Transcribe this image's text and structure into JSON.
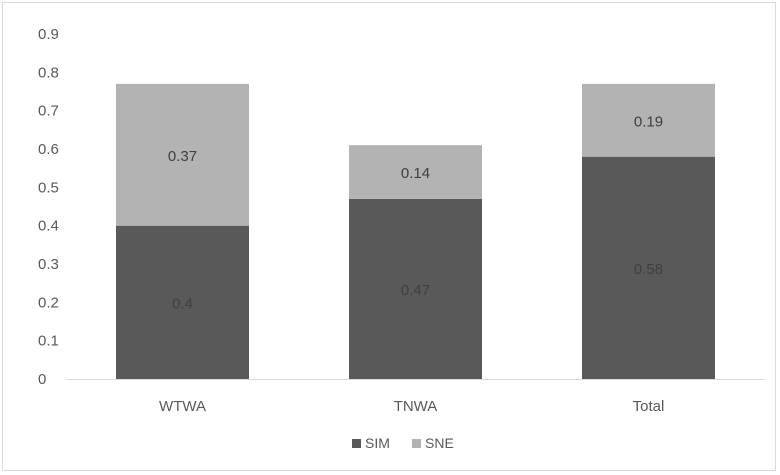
{
  "chart_data": {
    "type": "bar",
    "stacked": true,
    "categories": [
      "WTWA",
      "TNWA",
      "Total"
    ],
    "series": [
      {
        "name": "SIM",
        "values": [
          0.4,
          0.47,
          0.58
        ],
        "labels": [
          "0.4",
          "0.47",
          "0.58"
        ],
        "color": "#595959",
        "label_color": "#3f3f3f"
      },
      {
        "name": "SNE",
        "values": [
          0.37,
          0.14,
          0.19
        ],
        "labels": [
          "0.37",
          "0.14",
          "0.19"
        ],
        "color": "#b3b3b3",
        "label_color": "#3f3f3f"
      }
    ],
    "y_ticks": [
      "0",
      "0.1",
      "0.2",
      "0.3",
      "0.4",
      "0.5",
      "0.6",
      "0.7",
      "0.8",
      "0.9"
    ],
    "ylim": [
      0,
      0.9
    ],
    "grid": false,
    "legend_position": "bottom"
  }
}
